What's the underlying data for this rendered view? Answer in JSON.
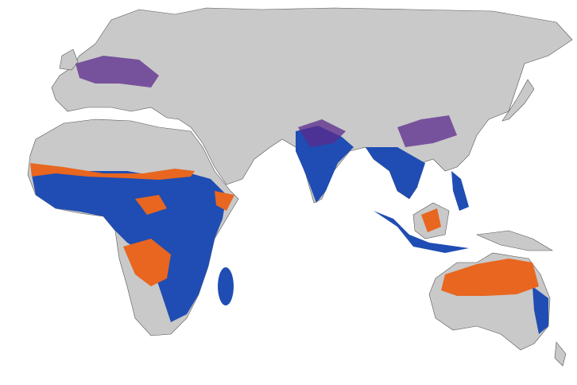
{
  "map": {
    "colors": {
      "ocean": "#ffffff",
      "land": "#c9c9c9",
      "border": "#555555",
      "blue": "#1f4db3",
      "orange": "#e8661f",
      "purple": "#5b2a8c"
    }
  }
}
